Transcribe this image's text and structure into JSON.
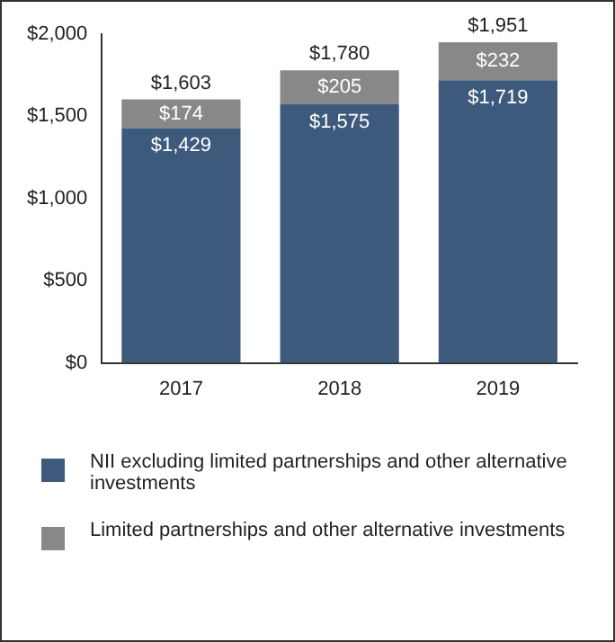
{
  "chart_data": {
    "type": "bar",
    "stacked": true,
    "categories": [
      "2017",
      "2018",
      "2019"
    ],
    "series": [
      {
        "name": "NII excluding limited partnerships and other alternative investments",
        "color": "#3d5a7d",
        "values": [
          1429,
          1575,
          1719
        ],
        "value_labels": [
          "$1,429",
          "$1,575",
          "$1,719"
        ]
      },
      {
        "name": "Limited partnerships and other alternative investments",
        "color": "#888888",
        "values": [
          174,
          205,
          232
        ],
        "value_labels": [
          "$174",
          "$205",
          "$232"
        ]
      }
    ],
    "totals": [
      "$1,603",
      "$1,780",
      "$1,951"
    ],
    "ylim": [
      0,
      2000
    ],
    "yticks": [
      {
        "value": 0,
        "label": "$0"
      },
      {
        "value": 500,
        "label": "$500"
      },
      {
        "value": 1000,
        "label": "$1,000"
      },
      {
        "value": 1500,
        "label": "$1,500"
      },
      {
        "value": 2000,
        "label": "$2,000"
      }
    ],
    "grid": false,
    "legend": "bottom"
  }
}
